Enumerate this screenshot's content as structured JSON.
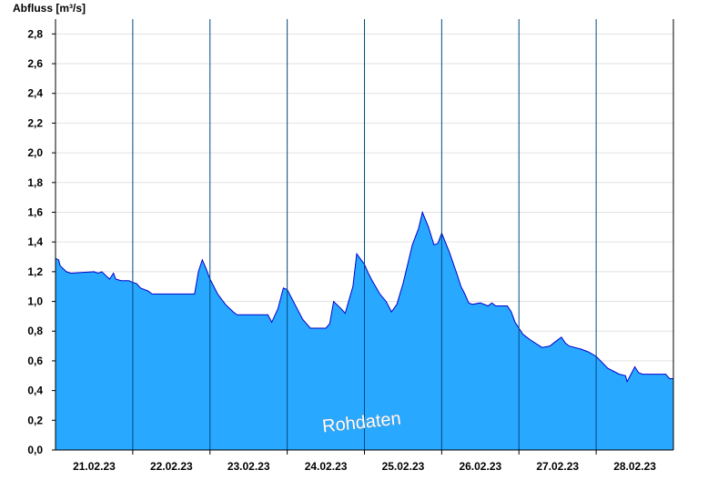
{
  "chart_data": {
    "type": "area",
    "ylabel": "Abfluss [m³/s]",
    "ylim": [
      0,
      2.9
    ],
    "yticks": [
      "0,0",
      "0,2",
      "0,4",
      "0,6",
      "0,8",
      "1,0",
      "1,2",
      "1,4",
      "1,6",
      "1,8",
      "2,0",
      "2,2",
      "2,4",
      "2,6",
      "2,8"
    ],
    "x_categories": [
      "21.02.23",
      "22.02.23",
      "23.02.23",
      "24.02.23",
      "25.02.23",
      "26.02.23",
      "27.02.23",
      "28.02.23"
    ],
    "grid": true,
    "colors": {
      "fill": "#29a8ff",
      "line": "#0000cc",
      "grid": "#e2e2e2",
      "dayline": "#004a80"
    },
    "watermark": "Rohdaten",
    "series": [
      {
        "x_unit": "days since 21.02.23 00:00",
        "x": [
          0,
          0.04,
          0.06,
          0.1,
          0.14,
          0.2,
          0.5,
          0.55,
          0.6,
          0.7,
          0.75,
          0.78,
          0.85,
          0.95,
          0.99,
          1.05,
          1.1,
          1.2,
          1.25,
          1.8,
          1.85,
          1.9,
          1.95,
          2.0,
          2.1,
          2.2,
          2.3,
          2.35,
          2.75,
          2.8,
          2.88,
          2.95,
          3.0,
          3.1,
          3.2,
          3.25,
          3.3,
          3.5,
          3.55,
          3.6,
          3.7,
          3.75,
          3.85,
          3.9,
          4.0,
          4.05,
          4.1,
          4.2,
          4.28,
          4.35,
          4.42,
          4.5,
          4.62,
          4.7,
          4.75,
          4.83,
          4.9,
          4.95,
          5.0,
          5.1,
          5.2,
          5.25,
          5.3,
          5.35,
          5.4,
          5.5,
          5.6,
          5.65,
          5.7,
          5.8,
          5.85,
          5.9,
          5.95,
          6.05,
          6.1,
          6.15,
          6.3,
          6.4,
          6.45,
          6.55,
          6.6,
          6.65,
          6.8,
          6.9,
          7.0,
          7.15,
          7.3,
          7.38,
          7.4,
          7.5,
          7.55,
          7.6,
          7.7,
          7.75,
          7.8,
          7.85,
          7.9,
          7.95,
          8.0
        ],
        "values": [
          1.29,
          1.28,
          1.24,
          1.22,
          1.2,
          1.19,
          1.2,
          1.19,
          1.2,
          1.15,
          1.19,
          1.15,
          1.14,
          1.14,
          1.13,
          1.12,
          1.09,
          1.07,
          1.05,
          1.05,
          1.2,
          1.28,
          1.22,
          1.15,
          1.05,
          0.98,
          0.93,
          0.91,
          0.91,
          0.86,
          0.95,
          1.09,
          1.08,
          0.98,
          0.88,
          0.85,
          0.82,
          0.82,
          0.85,
          1.0,
          0.95,
          0.92,
          1.1,
          1.32,
          1.25,
          1.19,
          1.14,
          1.05,
          1.0,
          0.93,
          0.98,
          1.12,
          1.38,
          1.49,
          1.6,
          1.5,
          1.38,
          1.39,
          1.46,
          1.33,
          1.18,
          1.1,
          1.05,
          0.99,
          0.98,
          0.99,
          0.97,
          0.99,
          0.97,
          0.97,
          0.97,
          0.93,
          0.86,
          0.78,
          0.76,
          0.74,
          0.69,
          0.7,
          0.72,
          0.76,
          0.72,
          0.7,
          0.68,
          0.66,
          0.63,
          0.55,
          0.51,
          0.5,
          0.46,
          0.56,
          0.52,
          0.51,
          0.51,
          0.51,
          0.51,
          0.51,
          0.51,
          0.48,
          0.48
        ]
      }
    ]
  }
}
